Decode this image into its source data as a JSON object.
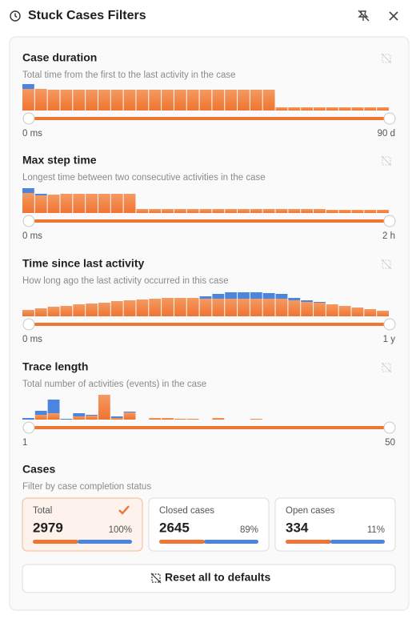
{
  "header": {
    "title": "Stuck Cases Filters"
  },
  "filters": [
    {
      "title": "Case duration",
      "subtitle": "Total time from the first to the last activity in the case",
      "min_label": "0 ms",
      "max_label": "90 d",
      "histogram": {
        "type": "bar",
        "stacked": true,
        "series": [
          {
            "color": "#f07a36",
            "values": [
              27,
              27,
              26,
              26,
              26,
              26,
              26,
              26,
              26,
              26,
              26,
              26,
              26,
              26,
              26,
              26,
              26,
              26,
              26,
              26,
              4,
              4,
              4,
              4,
              4,
              4,
              4,
              4,
              4
            ]
          },
          {
            "color": "#4a86e0",
            "values": [
              6,
              0,
              0,
              0,
              0,
              0,
              0,
              0,
              0,
              0,
              0,
              0,
              0,
              0,
              0,
              0,
              0,
              0,
              0,
              0,
              0,
              0,
              0,
              0,
              0,
              0,
              0,
              0,
              0
            ]
          }
        ]
      }
    },
    {
      "title": "Max step time",
      "subtitle": "Longest time between two consecutive activities in the case",
      "min_label": "0 ms",
      "max_label": "2 h",
      "histogram": {
        "type": "bar",
        "stacked": true,
        "series": [
          {
            "color": "#f07a36",
            "values": [
              25,
              22,
              23,
              24,
              24,
              24,
              24,
              24,
              24,
              5,
              5,
              5,
              5,
              5,
              5,
              5,
              5,
              5,
              5,
              5,
              5,
              5,
              5,
              5,
              4,
              4,
              4,
              4,
              4
            ]
          },
          {
            "color": "#4a86e0",
            "values": [
              6,
              2,
              0,
              0,
              0,
              0,
              0,
              0,
              0,
              0,
              0,
              0,
              0,
              0,
              0,
              0,
              0,
              0,
              0,
              0,
              0,
              0,
              0,
              0,
              0,
              0,
              0,
              0,
              0
            ]
          }
        ]
      }
    },
    {
      "title": "Time since last activity",
      "subtitle": "How long ago the last activity occurred in this case",
      "min_label": "0 ms",
      "max_label": "1 y",
      "histogram": {
        "type": "bar",
        "stacked": true,
        "series": [
          {
            "color": "#f07a36",
            "values": [
              8,
              10,
              12,
              13,
              15,
              16,
              17,
              19,
              20,
              21,
              22,
              23,
              23,
              23,
              22,
              22,
              22,
              22,
              22,
              22,
              22,
              20,
              18,
              17,
              15,
              13,
              11,
              9,
              7
            ]
          },
          {
            "color": "#4a86e0",
            "values": [
              0,
              0,
              0,
              0,
              0,
              0,
              0,
              0,
              0,
              0,
              0,
              0,
              0,
              0,
              3,
              6,
              8,
              8,
              8,
              7,
              6,
              3,
              2,
              1,
              0,
              0,
              0,
              0,
              0
            ]
          }
        ]
      }
    },
    {
      "title": "Trace length",
      "subtitle": "Total number of activities (events) in the case",
      "min_label": "1",
      "max_label": "50",
      "histogram": {
        "type": "bar",
        "stacked": true,
        "series": [
          {
            "color": "#f07a36",
            "values": [
              0,
              6,
              8,
              0,
              4,
              5,
              31,
              2,
              9,
              0,
              2,
              2,
              1,
              1,
              0,
              2,
              0,
              0,
              1,
              0,
              0,
              0,
              0,
              0,
              0,
              0,
              0,
              0,
              0
            ]
          },
          {
            "color": "#4a86e0",
            "values": [
              2,
              5,
              17,
              1,
              4,
              1,
              0,
              2,
              1,
              0,
              0,
              0,
              0,
              0,
              0,
              0,
              0,
              0,
              0,
              0,
              0,
              0,
              0,
              0,
              0,
              0,
              0,
              0,
              0
            ]
          }
        ]
      }
    }
  ],
  "cases": {
    "title": "Cases",
    "subtitle": "Filter by case completion status",
    "cards": [
      {
        "label": "Total",
        "count": 2979,
        "percent": "100%",
        "selected": true
      },
      {
        "label": "Closed cases",
        "count": 2645,
        "percent": "89%",
        "selected": false
      },
      {
        "label": "Open cases",
        "count": 334,
        "percent": "11%",
        "selected": false
      }
    ]
  },
  "reset": {
    "label": "Reset all to defaults"
  }
}
